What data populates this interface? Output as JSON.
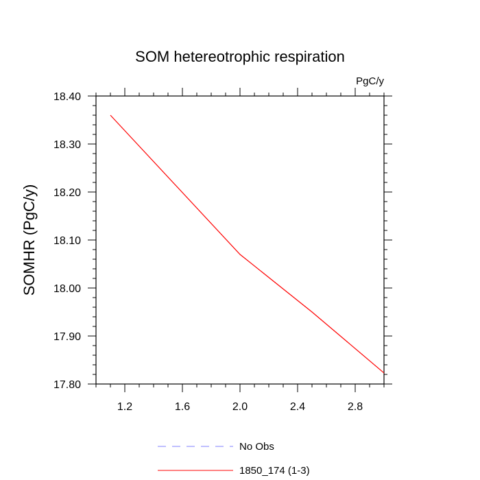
{
  "chart_data": {
    "type": "line",
    "title": "SOM hetereotrophic respiration",
    "units_label": "PgC/y",
    "ylabel": "SOMHR  (PgC/y)",
    "xlabel": "",
    "xlim": [
      1.0,
      3.0
    ],
    "ylim": [
      17.8,
      18.4
    ],
    "x_ticks": [
      1.2,
      1.6,
      2.0,
      2.4,
      2.8
    ],
    "x_tick_labels": [
      "1.2",
      "1.6",
      "2.0",
      "2.4",
      "2.8"
    ],
    "y_ticks": [
      17.8,
      17.9,
      18.0,
      18.1,
      18.2,
      18.3,
      18.4
    ],
    "y_tick_labels": [
      "17.80",
      "17.90",
      "18.00",
      "18.10",
      "18.20",
      "18.30",
      "18.40"
    ],
    "grid": false,
    "legend_position": "bottom",
    "series": [
      {
        "name": "No Obs",
        "color": "#8080ff",
        "dash": true,
        "x": [],
        "y": []
      },
      {
        "name": "1850_174 (1-3)",
        "color": "#ff0000",
        "dash": false,
        "x": [
          1.1,
          2.0,
          2.5,
          3.0
        ],
        "y": [
          18.36,
          18.07,
          17.95,
          17.823
        ]
      }
    ]
  }
}
